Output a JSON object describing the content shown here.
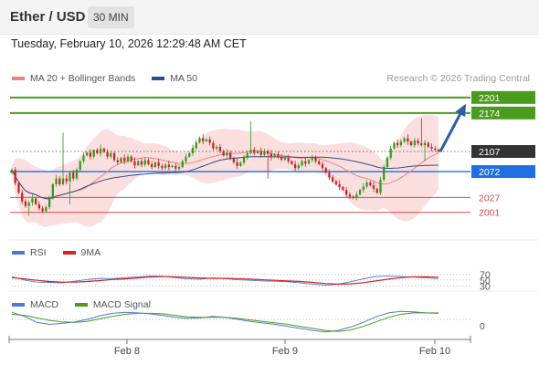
{
  "header": {
    "title": "Ether / USD",
    "timeframe": "30 MIN"
  },
  "timestamp": "Tuesday, February 10, 2026 12:29:48 AM CET",
  "legend": {
    "bb_label": "MA 20 + Bollinger Bands",
    "ma50_label": "MA 50",
    "rsi_label": "RSI",
    "rsi_ma_label": "9MA",
    "macd_label": "MACD",
    "macd_signal_label": "MACD Signal"
  },
  "credit": "Research © 2026 Trading Central",
  "colors": {
    "bullish": "#2e9a1a",
    "bearish": "#c42326",
    "ma20": "#f08080",
    "ma50": "#2c4d8c",
    "bands_fill": "#fbdcdc",
    "resistance": "#4a9c1f",
    "pivot": "#1f6fe0",
    "support": "#d84a4a",
    "current": "#333333",
    "rsi": "#4a7ad8",
    "rsi_ma": "#d62222",
    "macd": "#4a7ad8",
    "macd_signal": "#4e9c1c",
    "arrow": "#2d5ea8"
  },
  "chart_data": [
    {
      "type": "candlestick",
      "title": "Ether / USD",
      "x_ticks": [
        "Feb 8",
        "Feb 9",
        "Feb 10"
      ],
      "ylim": [
        1945,
        2215
      ],
      "closes": [
        2075,
        2052,
        2035,
        2020,
        2012,
        2018,
        2025,
        2015,
        2008,
        2003,
        2010,
        2025,
        2050,
        2060,
        2050,
        2060,
        2055,
        2070,
        2060,
        2075,
        2090,
        2100,
        2105,
        2098,
        2110,
        2104,
        2112,
        2106,
        2098,
        2104,
        2092,
        2088,
        2096,
        2090,
        2098,
        2090,
        2083,
        2090,
        2084,
        2092,
        2085,
        2080,
        2088,
        2082,
        2078,
        2084,
        2080,
        2082,
        2077,
        2080,
        2090,
        2098,
        2104,
        2113,
        2123,
        2130,
        2125,
        2128,
        2122,
        2112,
        2115,
        2108,
        2100,
        2105,
        2095,
        2088,
        2082,
        2088,
        2096,
        2104,
        2110,
        2104,
        2108,
        2101,
        2108,
        2103,
        2097,
        2102,
        2098,
        2093,
        2096,
        2090,
        2085,
        2078,
        2083,
        2090,
        2086,
        2092,
        2096,
        2090,
        2085,
        2078,
        2070,
        2062,
        2055,
        2050,
        2045,
        2040,
        2032,
        2028,
        2026,
        2032,
        2040,
        2046,
        2053,
        2048,
        2042,
        2035,
        2058,
        2080,
        2096,
        2112,
        2122,
        2118,
        2124,
        2130,
        2124,
        2118,
        2126,
        2121,
        2118,
        2122,
        2115,
        2112,
        2110,
        2107
      ],
      "lines": [
        {
          "label": "2201",
          "value": 2201,
          "kind": "resistance"
        },
        {
          "label": "2174",
          "value": 2174,
          "kind": "resistance"
        },
        {
          "label": "2107",
          "value": 2107,
          "kind": "current"
        },
        {
          "label": "2072",
          "value": 2072,
          "kind": "pivot"
        },
        {
          "label": "2027",
          "value": 2027,
          "kind": "support"
        },
        {
          "label": "2001",
          "value": 2001,
          "kind": "support"
        }
      ],
      "arrow": {
        "from": 2107,
        "to": 2190
      },
      "series": [
        {
          "name": "MA 20 + Bollinger Bands"
        },
        {
          "name": "MA 50"
        }
      ]
    },
    {
      "type": "line",
      "title": "RSI",
      "ylim": [
        0,
        100
      ],
      "y_ticks": [
        70,
        50,
        30
      ],
      "series": [
        {
          "name": "RSI",
          "values": [
            62,
            50,
            43,
            42,
            40,
            46,
            52,
            56,
            55,
            58,
            61,
            64,
            63,
            58,
            54,
            53,
            57,
            55,
            51,
            49,
            47,
            46,
            44,
            40,
            36,
            33,
            36,
            44,
            54,
            62,
            64,
            62,
            60,
            57,
            55
          ]
        },
        {
          "name": "9MA",
          "values": [
            58,
            54,
            49,
            45,
            43,
            43,
            45,
            48,
            52,
            54,
            57,
            60,
            62,
            61,
            59,
            57,
            56,
            56,
            55,
            53,
            51,
            49,
            47,
            45,
            42,
            38,
            36,
            37,
            41,
            47,
            53,
            58,
            61,
            61,
            60
          ]
        }
      ]
    },
    {
      "type": "line",
      "title": "MACD",
      "y_ticks": [
        0
      ],
      "series": [
        {
          "name": "MACD",
          "values": [
            14,
            6,
            -6,
            -10,
            -8,
            -5,
            0,
            7,
            12,
            14,
            13,
            11,
            8,
            4,
            2,
            3,
            6,
            4,
            0,
            -4,
            -7,
            -10,
            -14,
            -18,
            -22,
            -25,
            -22,
            -15,
            -6,
            5,
            13,
            16,
            15,
            13,
            12
          ]
        },
        {
          "name": "MACD Signal",
          "values": [
            10,
            8,
            3,
            -2,
            -5,
            -6,
            -4,
            1,
            6,
            10,
            12,
            12,
            11,
            8,
            5,
            4,
            4,
            4,
            2,
            -1,
            -4,
            -7,
            -10,
            -14,
            -18,
            -22,
            -24,
            -21,
            -14,
            -5,
            4,
            10,
            13,
            13,
            13
          ]
        }
      ]
    }
  ]
}
